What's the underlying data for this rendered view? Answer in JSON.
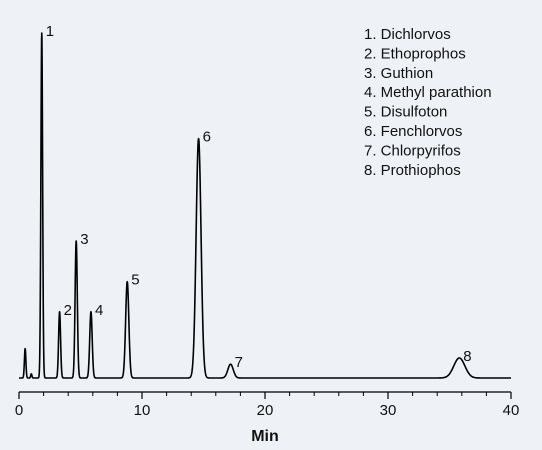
{
  "chart_data": {
    "type": "line",
    "title": "",
    "xlabel": "Min",
    "ylabel": "",
    "xlim": [
      0,
      40
    ],
    "ylim": [
      0,
      100
    ],
    "grid": false,
    "legend_position": "top-right",
    "x_ticks": [
      "0",
      "10",
      "20",
      "30",
      "40"
    ],
    "x_tick_values": [
      0,
      10,
      20,
      30,
      40
    ],
    "baseline": 0,
    "solvent_peaks": [
      {
        "x": 0.5,
        "height": 8.5,
        "width": 0.06
      },
      {
        "x": 1.0,
        "height": 1.2,
        "width": 0.05
      }
    ],
    "peaks": [
      {
        "label": "1",
        "x": 1.85,
        "height": 100.0,
        "width": 0.07
      },
      {
        "label": "2",
        "x": 3.3,
        "height": 19.2,
        "width": 0.08
      },
      {
        "label": "3",
        "x": 4.65,
        "height": 39.7,
        "width": 0.09
      },
      {
        "label": "4",
        "x": 5.85,
        "height": 19.2,
        "width": 0.1
      },
      {
        "label": "5",
        "x": 8.8,
        "height": 27.9,
        "width": 0.13
      },
      {
        "label": "6",
        "x": 14.6,
        "height": 69.4,
        "width": 0.2
      },
      {
        "label": "7",
        "x": 17.2,
        "height": 4.0,
        "width": 0.22
      },
      {
        "label": "8",
        "x": 35.8,
        "height": 5.8,
        "width": 0.45
      }
    ],
    "legend": [
      "1. Dichlorvos",
      "2. Ethoprophos",
      "3. Guthion",
      "4. Methyl parathion",
      "5. Disulfoton",
      "6. Fenchlorvos",
      "7. Chlorpyrifos",
      "8. Prothiophos"
    ]
  }
}
